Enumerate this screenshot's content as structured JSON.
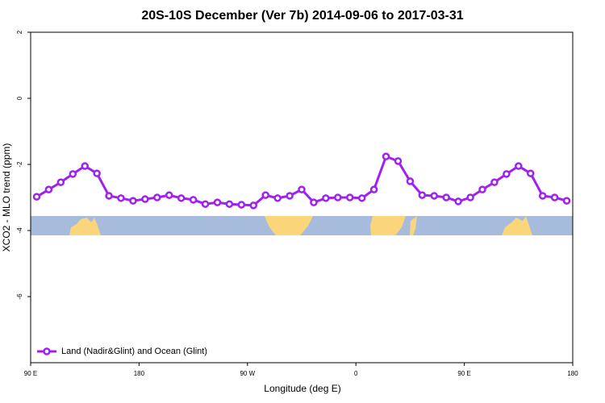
{
  "chart_data": {
    "type": "line",
    "title": "20S-10S December (Ver 7b)   2014-09-06 to 2017-03-31",
    "xlabel": "Longitude (deg E)",
    "ylabel": "XCO2 - MLO trend (ppm)",
    "x": [
      95,
      105,
      115,
      125,
      135,
      145,
      155,
      165,
      175,
      185,
      195,
      205,
      215,
      225,
      235,
      245,
      255,
      265,
      275,
      285,
      295,
      305,
      315,
      325,
      335,
      345,
      355,
      365,
      375,
      385,
      395,
      405,
      415,
      425,
      435,
      445,
      455,
      465,
      475,
      485,
      495,
      505,
      515,
      525,
      535
    ],
    "series": [
      {
        "name": "Land (Nadir&Glint) and Ocean (Glint)",
        "color": "#a020f0",
        "values": [
          -2.98,
          -2.76,
          -2.54,
          -2.29,
          -2.05,
          -2.27,
          -2.95,
          -3.02,
          -3.1,
          -3.05,
          -3.0,
          -2.93,
          -3.02,
          -3.07,
          -3.2,
          -3.15,
          -3.2,
          -3.22,
          -3.24,
          -2.93,
          -3.02,
          -2.95,
          -2.76,
          -3.15,
          -3.02,
          -3.0,
          -3.0,
          -3.02,
          -2.76,
          -1.76,
          -1.9,
          -2.51,
          -2.93,
          -2.95,
          -3.0,
          -3.12,
          -3.0,
          -2.76,
          -2.54,
          -2.29,
          -2.05,
          -2.27,
          -2.95,
          -3.0,
          -3.1
        ]
      }
    ],
    "xlim": [
      90,
      540
    ],
    "xticks": [
      {
        "value": 90,
        "label": "90 E"
      },
      {
        "value": 180,
        "label": "180"
      },
      {
        "value": 270,
        "label": "90 W"
      },
      {
        "value": 360,
        "label": "0"
      },
      {
        "value": 450,
        "label": "90 E"
      },
      {
        "value": 540,
        "label": "180"
      }
    ],
    "ylim": [
      -8,
      2
    ],
    "yticks": [
      2,
      0,
      -2,
      -4,
      -6
    ],
    "legend": "bottom-left"
  }
}
